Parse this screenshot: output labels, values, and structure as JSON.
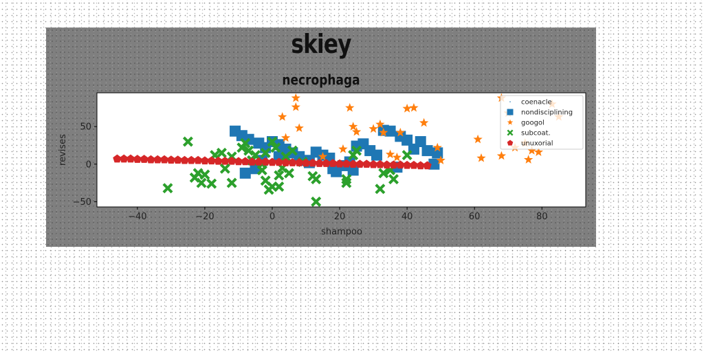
{
  "chart_data": {
    "type": "scatter",
    "suptitle": "skiey",
    "title": "necrophaga",
    "xlabel": "shampoo",
    "ylabel": "revises",
    "xlim": [
      -52,
      93
    ],
    "ylim": [
      -57,
      95
    ],
    "xticks": [
      -40,
      -20,
      0,
      20,
      40,
      60,
      80
    ],
    "yticks": [
      -50,
      0,
      50
    ],
    "grid": false,
    "legend_position": "top-right",
    "series": [
      {
        "name": "coenacle",
        "color": "#1f77b4",
        "marker": "none",
        "points": []
      },
      {
        "name": "nondisciplining",
        "color": "#1f77b4",
        "marker": "square",
        "points": [
          [
            -11,
            44
          ],
          [
            -9,
            38
          ],
          [
            -7,
            33
          ],
          [
            -4,
            28
          ],
          [
            -2,
            22
          ],
          [
            0,
            30
          ],
          [
            2,
            26
          ],
          [
            4,
            20
          ],
          [
            6,
            15
          ],
          [
            8,
            10
          ],
          [
            10,
            5
          ],
          [
            13,
            16
          ],
          [
            15,
            12
          ],
          [
            17,
            8
          ],
          [
            18,
            -6
          ],
          [
            19,
            -10
          ],
          [
            21,
            -2
          ],
          [
            23,
            3
          ],
          [
            25,
            24
          ],
          [
            27,
            27
          ],
          [
            29,
            18
          ],
          [
            31,
            12
          ],
          [
            33,
            45
          ],
          [
            35,
            44
          ],
          [
            38,
            37
          ],
          [
            40,
            32
          ],
          [
            42,
            20
          ],
          [
            44,
            30
          ],
          [
            46,
            18
          ],
          [
            48,
            0
          ],
          [
            49,
            15
          ],
          [
            -8,
            -12
          ],
          [
            -5,
            -6
          ],
          [
            2,
            10
          ],
          [
            11,
            2
          ],
          [
            24,
            -8
          ],
          [
            37,
            -4
          ],
          [
            -3,
            5
          ]
        ]
      },
      {
        "name": "googol",
        "color": "#ff7f0e",
        "marker": "star",
        "points": [
          [
            7,
            88
          ],
          [
            7,
            76
          ],
          [
            3,
            63
          ],
          [
            8,
            48
          ],
          [
            23,
            75
          ],
          [
            24,
            50
          ],
          [
            25,
            43
          ],
          [
            30,
            47
          ],
          [
            32,
            53
          ],
          [
            33,
            42
          ],
          [
            38,
            42
          ],
          [
            40,
            74
          ],
          [
            42,
            75
          ],
          [
            45,
            55
          ],
          [
            37,
            9
          ],
          [
            35,
            13
          ],
          [
            49,
            22
          ],
          [
            50,
            5
          ],
          [
            61,
            33
          ],
          [
            62,
            8
          ],
          [
            68,
            11
          ],
          [
            68,
            88
          ],
          [
            70,
            68
          ],
          [
            72,
            22
          ],
          [
            75,
            28
          ],
          [
            76,
            6
          ],
          [
            77,
            18
          ],
          [
            79,
            16
          ],
          [
            83,
            80
          ],
          [
            85,
            63
          ],
          [
            4,
            35
          ],
          [
            15,
            10
          ],
          [
            21,
            20
          ]
        ]
      },
      {
        "name": "subcoat.",
        "color": "#2ca02c",
        "marker": "x",
        "points": [
          [
            -31,
            -32
          ],
          [
            -25,
            30
          ],
          [
            -23,
            -18
          ],
          [
            -22,
            -12
          ],
          [
            -21,
            -25
          ],
          [
            -20,
            -14
          ],
          [
            -18,
            -26
          ],
          [
            -17,
            12
          ],
          [
            -15,
            15
          ],
          [
            -14,
            -6
          ],
          [
            -12,
            10
          ],
          [
            -12,
            -25
          ],
          [
            -9,
            22
          ],
          [
            -8,
            28
          ],
          [
            -7,
            18
          ],
          [
            -6,
            5
          ],
          [
            -5,
            12
          ],
          [
            -3,
            -8
          ],
          [
            -2,
            15
          ],
          [
            -2,
            -22
          ],
          [
            -1,
            -34
          ],
          [
            0,
            -30
          ],
          [
            0,
            30
          ],
          [
            1,
            22
          ],
          [
            2,
            -15
          ],
          [
            2,
            -30
          ],
          [
            3,
            -5
          ],
          [
            4,
            10
          ],
          [
            5,
            -12
          ],
          [
            6,
            18
          ],
          [
            12,
            -16
          ],
          [
            13,
            -20
          ],
          [
            13,
            -50
          ],
          [
            22,
            -20
          ],
          [
            22,
            -25
          ],
          [
            24,
            12
          ],
          [
            25,
            18
          ],
          [
            32,
            -33
          ],
          [
            33,
            -12
          ],
          [
            35,
            -8
          ],
          [
            36,
            -20
          ],
          [
            40,
            12
          ],
          [
            -3,
            0
          ],
          [
            9,
            3
          ]
        ]
      },
      {
        "name": "unuxorial",
        "color": "#d62728",
        "marker": "pentagon",
        "points": [
          [
            -46,
            7
          ],
          [
            -44,
            7
          ],
          [
            -42,
            7
          ],
          [
            -40,
            6.5
          ],
          [
            -38,
            6.5
          ],
          [
            -36,
            6
          ],
          [
            -34,
            6
          ],
          [
            -32,
            6
          ],
          [
            -30,
            5.5
          ],
          [
            -28,
            5.5
          ],
          [
            -26,
            5
          ],
          [
            -24,
            5
          ],
          [
            -22,
            5
          ],
          [
            -20,
            4.5
          ],
          [
            -18,
            4.5
          ],
          [
            -16,
            4
          ],
          [
            -14,
            4
          ],
          [
            -12,
            4
          ],
          [
            -10,
            3.5
          ],
          [
            -8,
            3.5
          ],
          [
            -6,
            3
          ],
          [
            -4,
            3
          ],
          [
            -2,
            3
          ],
          [
            0,
            2.5
          ],
          [
            2,
            2.5
          ],
          [
            4,
            2
          ],
          [
            6,
            2
          ],
          [
            8,
            2
          ],
          [
            10,
            1.5
          ],
          [
            12,
            1.5
          ],
          [
            14,
            1
          ],
          [
            16,
            1
          ],
          [
            18,
            1
          ],
          [
            20,
            0.5
          ],
          [
            22,
            0.5
          ],
          [
            24,
            0
          ],
          [
            26,
            0
          ],
          [
            28,
            0
          ],
          [
            30,
            -0.5
          ],
          [
            32,
            -0.5
          ],
          [
            34,
            -1
          ],
          [
            36,
            -1
          ],
          [
            38,
            -1
          ],
          [
            40,
            -1.5
          ],
          [
            42,
            -1.5
          ],
          [
            44,
            -2
          ],
          [
            46,
            -2
          ]
        ]
      }
    ]
  }
}
